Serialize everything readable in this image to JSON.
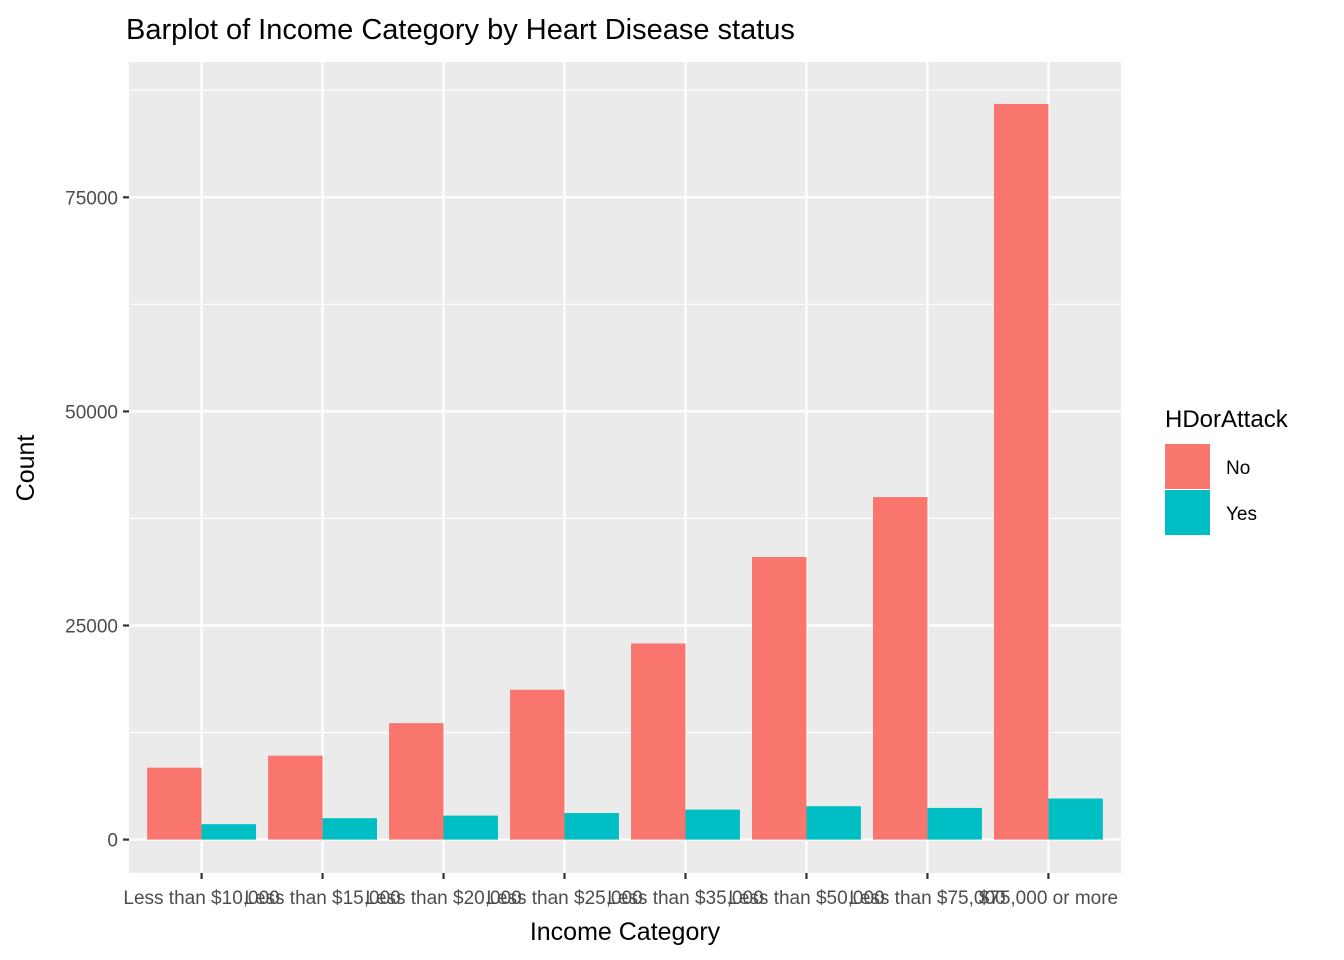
{
  "chart_data": {
    "type": "bar",
    "title": "Barplot of Income Category by Heart Disease status",
    "xlabel": "Income Category",
    "ylabel": "Count",
    "categories": [
      "Less than $10,000",
      "Less than $15,000",
      "Less than $20,000",
      "Less than $25,000",
      "Less than $35,000",
      "Less than $50,000",
      "Less than $75,000",
      "$75,000 or more"
    ],
    "series": [
      {
        "name": "No",
        "color": "#F8766D",
        "values": [
          8400,
          9800,
          13600,
          17500,
          22900,
          33000,
          40000,
          85900
        ]
      },
      {
        "name": "Yes",
        "color": "#00BFC4",
        "values": [
          1800,
          2500,
          2800,
          3100,
          3500,
          3900,
          3700,
          4800
        ]
      }
    ],
    "ylim": [
      -3900,
      90800
    ],
    "yticks": [
      0,
      25000,
      50000,
      75000
    ],
    "ytick_labels": [
      "0",
      "25000",
      "50000",
      "75000"
    ],
    "grid": true,
    "legend": {
      "title": "HDorAttack",
      "position": "right"
    }
  }
}
